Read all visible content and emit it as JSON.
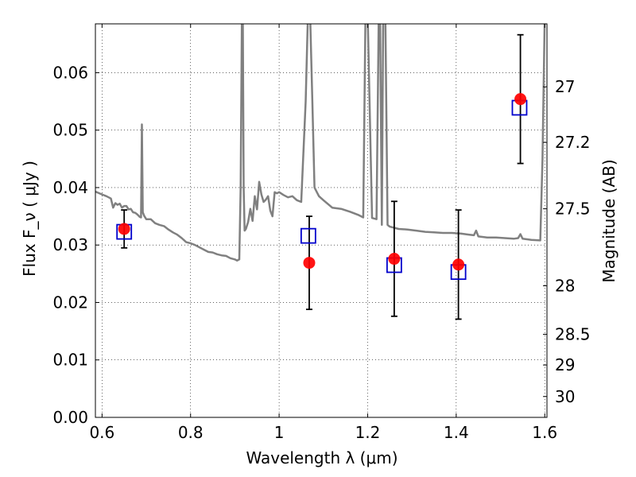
{
  "chart_data": {
    "type": "scatter",
    "title": "",
    "xlabel": "Wavelength  λ (μm)",
    "ylabel": "Flux  F_ν  ( μJy )",
    "y2label": "Magnitude (AB)",
    "xlim": [
      0.585,
      1.605
    ],
    "ylim": [
      0.0,
      0.0685
    ],
    "x_ticks": [
      0.6,
      0.8,
      1.0,
      1.2,
      1.4,
      1.6
    ],
    "x_tick_labels": [
      "0.6",
      "0.8",
      "1",
      "1.2",
      "1.4",
      "1.6"
    ],
    "y_ticks": [
      0.0,
      0.01,
      0.02,
      0.03,
      0.04,
      0.05,
      0.06
    ],
    "y_tick_labels": [
      "0.00",
      "0.01",
      "0.02",
      "0.03",
      "0.04",
      "0.05",
      "0.06"
    ],
    "y2_ticks": [
      27,
      27.2,
      27.5,
      28,
      28.5,
      29,
      30
    ],
    "y2_tick_labels": [
      "27",
      "27.2",
      "27.5",
      "28",
      "28.5",
      "29",
      "30"
    ],
    "grid": true,
    "colors": {
      "observed": "#ff0000",
      "model_box": "#0000cc",
      "errorbar": "#000000",
      "spectrum": "#808080"
    },
    "series": [
      {
        "kind": "errorbar-circles",
        "x": [
          0.65,
          1.068,
          1.26,
          1.405,
          1.545
        ],
        "y": [
          0.0328,
          0.0269,
          0.0276,
          0.0266,
          0.0554
        ],
        "yerr": [
          0.0033,
          0.0081,
          0.01,
          0.0095,
          0.0112
        ]
      },
      {
        "kind": "open-squares",
        "x": [
          0.65,
          1.066,
          1.26,
          1.405,
          1.543
        ],
        "y": [
          0.0323,
          0.0316,
          0.0265,
          0.0253,
          0.0539
        ]
      },
      {
        "kind": "spectrum-line",
        "x": [
          0.585,
          0.6,
          0.61,
          0.62,
          0.625,
          0.63,
          0.635,
          0.64,
          0.645,
          0.65,
          0.655,
          0.66,
          0.665,
          0.67,
          0.675,
          0.68,
          0.685,
          0.688,
          0.69,
          0.692,
          0.695,
          0.7,
          0.71,
          0.72,
          0.73,
          0.74,
          0.75,
          0.76,
          0.77,
          0.78,
          0.79,
          0.8,
          0.81,
          0.82,
          0.83,
          0.84,
          0.85,
          0.86,
          0.87,
          0.88,
          0.89,
          0.9,
          0.905,
          0.91,
          0.913,
          0.916,
          0.918,
          0.92,
          0.922,
          0.925,
          0.93,
          0.935,
          0.94,
          0.945,
          0.95,
          0.955,
          0.96,
          0.965,
          0.97,
          0.975,
          0.98,
          0.985,
          0.99,
          0.995,
          1.0,
          1.01,
          1.02,
          1.03,
          1.04,
          1.05,
          1.06,
          1.065,
          1.07,
          1.075,
          1.08,
          1.09,
          1.1,
          1.12,
          1.14,
          1.16,
          1.18,
          1.19,
          1.195,
          1.2,
          1.21,
          1.22,
          1.225,
          1.228,
          1.232,
          1.235,
          1.24,
          1.245,
          1.25,
          1.27,
          1.29,
          1.31,
          1.33,
          1.35,
          1.37,
          1.39,
          1.41,
          1.43,
          1.44,
          1.445,
          1.45,
          1.47,
          1.49,
          1.51,
          1.53,
          1.54,
          1.545,
          1.55,
          1.57,
          1.59,
          1.595,
          1.6
        ],
        "y": [
          0.0393,
          0.0388,
          0.0385,
          0.0381,
          0.0365,
          0.0373,
          0.037,
          0.0372,
          0.0365,
          0.0368,
          0.0368,
          0.0362,
          0.0363,
          0.0357,
          0.0356,
          0.0353,
          0.0349,
          0.0348,
          0.051,
          0.0357,
          0.0351,
          0.0345,
          0.0345,
          0.0338,
          0.0335,
          0.0333,
          0.0327,
          0.0322,
          0.0318,
          0.0312,
          0.0305,
          0.0303,
          0.03,
          0.0296,
          0.0292,
          0.0288,
          0.0287,
          0.0284,
          0.0282,
          0.0281,
          0.0277,
          0.0275,
          0.0273,
          0.0275,
          0.04,
          0.07,
          0.07,
          0.04,
          0.0325,
          0.0328,
          0.034,
          0.0363,
          0.0342,
          0.0385,
          0.0362,
          0.041,
          0.0388,
          0.0375,
          0.0379,
          0.0385,
          0.036,
          0.035,
          0.0392,
          0.039,
          0.0392,
          0.0387,
          0.0383,
          0.0385,
          0.0378,
          0.0375,
          0.055,
          0.07,
          0.07,
          0.055,
          0.04,
          0.0385,
          0.0378,
          0.0365,
          0.0363,
          0.0358,
          0.0352,
          0.0348,
          0.07,
          0.07,
          0.0347,
          0.0345,
          0.07,
          0.07,
          0.0335,
          0.07,
          0.07,
          0.0335,
          0.0332,
          0.0328,
          0.0327,
          0.0325,
          0.0323,
          0.0322,
          0.0321,
          0.0321,
          0.032,
          0.0318,
          0.0317,
          0.0325,
          0.0315,
          0.0313,
          0.0313,
          0.0312,
          0.0311,
          0.0312,
          0.0319,
          0.0311,
          0.0309,
          0.0308,
          0.045,
          0.07
        ]
      }
    ]
  }
}
